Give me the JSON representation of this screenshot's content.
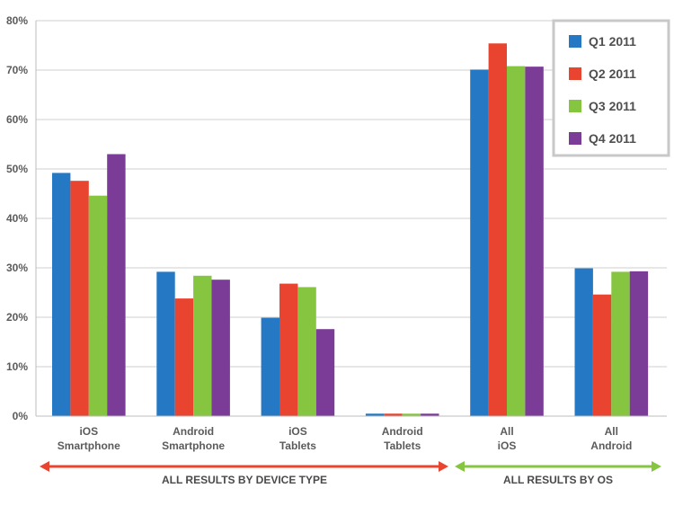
{
  "chart_data": {
    "type": "bar",
    "title": "",
    "xlabel": "",
    "ylabel": "",
    "ylim": [
      0,
      80
    ],
    "y_ticks": [
      "0%",
      "10%",
      "20%",
      "30%",
      "40%",
      "50%",
      "60%",
      "70%",
      "80%"
    ],
    "grid": true,
    "legend_position": "top-right",
    "categories": [
      {
        "lines": [
          "iOS",
          "Smartphone"
        ]
      },
      {
        "lines": [
          "Android",
          "Smartphone"
        ]
      },
      {
        "lines": [
          "iOS",
          "Tablets"
        ]
      },
      {
        "lines": [
          "Android",
          "Tablets"
        ]
      },
      {
        "lines": [
          "All",
          "iOS"
        ]
      },
      {
        "lines": [
          "All",
          "Android"
        ]
      }
    ],
    "series": [
      {
        "name": "Q1 2011",
        "color": "#2579c4",
        "values": [
          49.2,
          29.2,
          19.9,
          0.5,
          70.1,
          29.9
        ]
      },
      {
        "name": "Q2 2011",
        "color": "#e8442f",
        "values": [
          47.6,
          23.8,
          26.8,
          0.5,
          75.4,
          24.6
        ]
      },
      {
        "name": "Q3 2011",
        "color": "#86c540",
        "values": [
          44.6,
          28.4,
          26.1,
          0.5,
          70.8,
          29.2
        ]
      },
      {
        "name": "Q4 2011",
        "color": "#7a3c96",
        "values": [
          53.0,
          27.6,
          17.6,
          0.5,
          70.7,
          29.3
        ]
      }
    ],
    "sections": [
      {
        "label": "ALL RESULTS BY DEVICE TYPE",
        "color": "#e8442f"
      },
      {
        "label": "ALL RESULTS BY OS",
        "color": "#86c540"
      }
    ]
  }
}
